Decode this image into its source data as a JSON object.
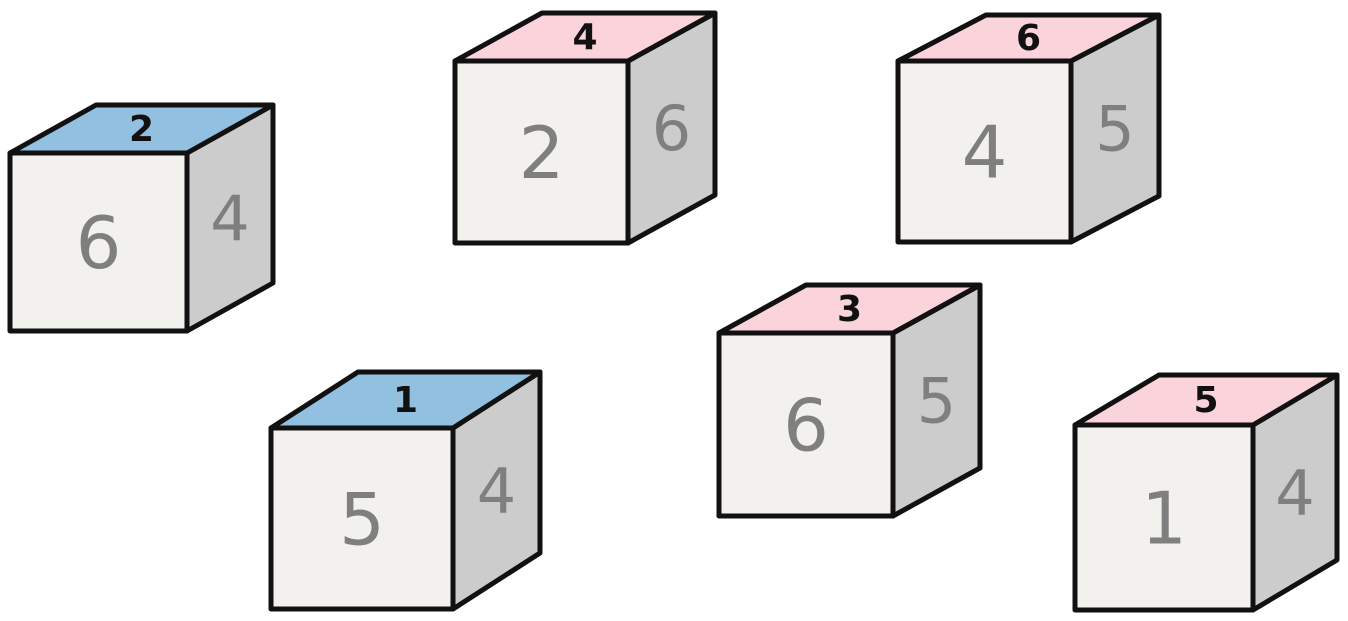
{
  "colors": {
    "outline": "#111111",
    "front_face": "#f3f1ee",
    "side_face": "#cccccc",
    "top_blue": "#92c0e1",
    "top_pink": "#fbd3db",
    "face_number": "#7f7f7f",
    "top_number": "#111111"
  },
  "cubes": [
    {
      "top": "2",
      "front": "6",
      "side": "4",
      "top_color": "blue"
    },
    {
      "top": "4",
      "front": "2",
      "side": "6",
      "top_color": "pink"
    },
    {
      "top": "6",
      "front": "4",
      "side": "5",
      "top_color": "pink"
    },
    {
      "top": "1",
      "front": "5",
      "side": "4",
      "top_color": "blue"
    },
    {
      "top": "3",
      "front": "6",
      "side": "5",
      "top_color": "pink"
    },
    {
      "top": "5",
      "front": "1",
      "side": "4",
      "top_color": "pink"
    }
  ]
}
